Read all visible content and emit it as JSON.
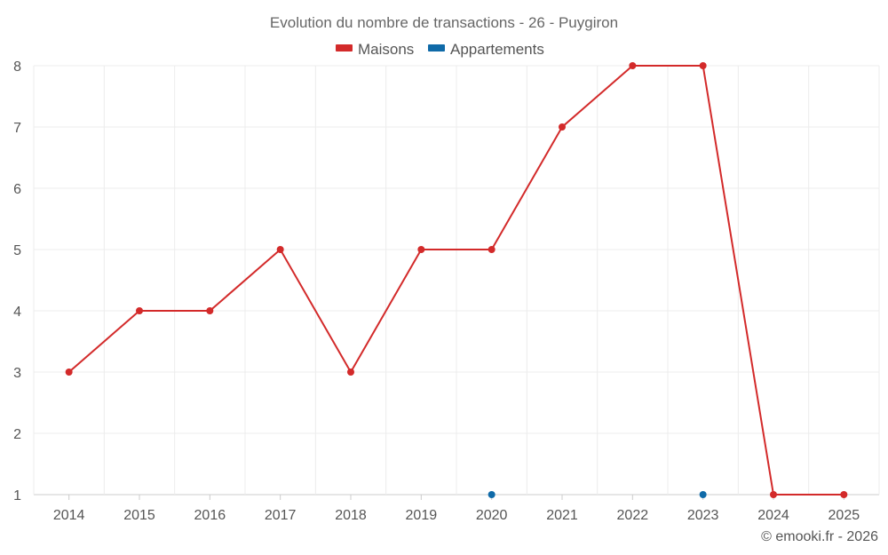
{
  "chart_data": {
    "type": "line",
    "title": "Evolution du nombre de transactions - 26 - Puygiron",
    "categories": [
      "2014",
      "2015",
      "2016",
      "2017",
      "2018",
      "2019",
      "2020",
      "2021",
      "2022",
      "2023",
      "2024",
      "2025"
    ],
    "series": [
      {
        "name": "Maisons",
        "color": "#d32a2a",
        "values": [
          3,
          4,
          4,
          5,
          3,
          5,
          5,
          7,
          8,
          8,
          1,
          1
        ]
      },
      {
        "name": "Appartements",
        "color": "#0f6aa8",
        "values": [
          null,
          null,
          null,
          null,
          null,
          null,
          1,
          null,
          null,
          1,
          null,
          null
        ]
      }
    ],
    "ylim": [
      1,
      8
    ],
    "yticks": [
      "1",
      "2",
      "3",
      "4",
      "5",
      "6",
      "7",
      "8"
    ],
    "grid": true,
    "legend": "top-center",
    "xlabel": "",
    "ylabel": ""
  },
  "credit": "© emooki.fr - 2026"
}
